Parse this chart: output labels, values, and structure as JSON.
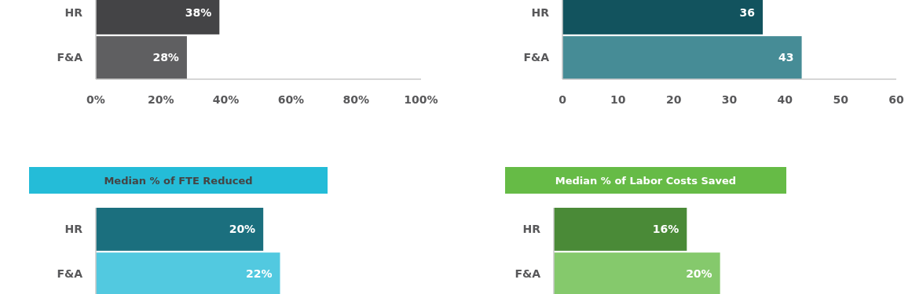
{
  "chart_data": [
    {
      "type": "bar",
      "orientation": "horizontal",
      "categories": [
        "HR",
        "F&A"
      ],
      "values": [
        38,
        28
      ],
      "colors": [
        "#444446",
        "#5f5f61"
      ],
      "value_labels": [
        "38%",
        "28%"
      ],
      "xlim": [
        0,
        100
      ],
      "xticks": [
        {
          "value": 0,
          "label": "0%"
        },
        {
          "value": 20,
          "label": "20%"
        },
        {
          "value": 40,
          "label": "40%"
        },
        {
          "value": 60,
          "label": "60%"
        },
        {
          "value": 80,
          "label": "80%"
        },
        {
          "value": 100,
          "label": "100%"
        }
      ]
    },
    {
      "type": "bar",
      "orientation": "horizontal",
      "categories": [
        "HR",
        "F&A"
      ],
      "values": [
        36,
        43
      ],
      "colors": [
        "#12535e",
        "#468c96"
      ],
      "data_labels": true,
      "xlim": [
        0,
        60
      ],
      "xticks": [
        0,
        10,
        20,
        30,
        40,
        50,
        60
      ]
    },
    {
      "type": "bar",
      "orientation": "horizontal",
      "title": "Median % of FTE Reduced",
      "categories": [
        "HR",
        "F&A"
      ],
      "values": [
        20,
        22
      ],
      "colors": [
        "#1b6f7e",
        "#52c9e0"
      ],
      "value_labels": [
        "20%",
        "22%"
      ]
    },
    {
      "type": "bar",
      "orientation": "horizontal",
      "title": "Median % of Labor Costs Saved",
      "categories": [
        "HR",
        "F&A"
      ],
      "values": [
        16,
        20
      ],
      "colors": [
        "#4a8a37",
        "#85c96c"
      ],
      "value_labels": [
        "16%",
        "20%"
      ]
    }
  ]
}
